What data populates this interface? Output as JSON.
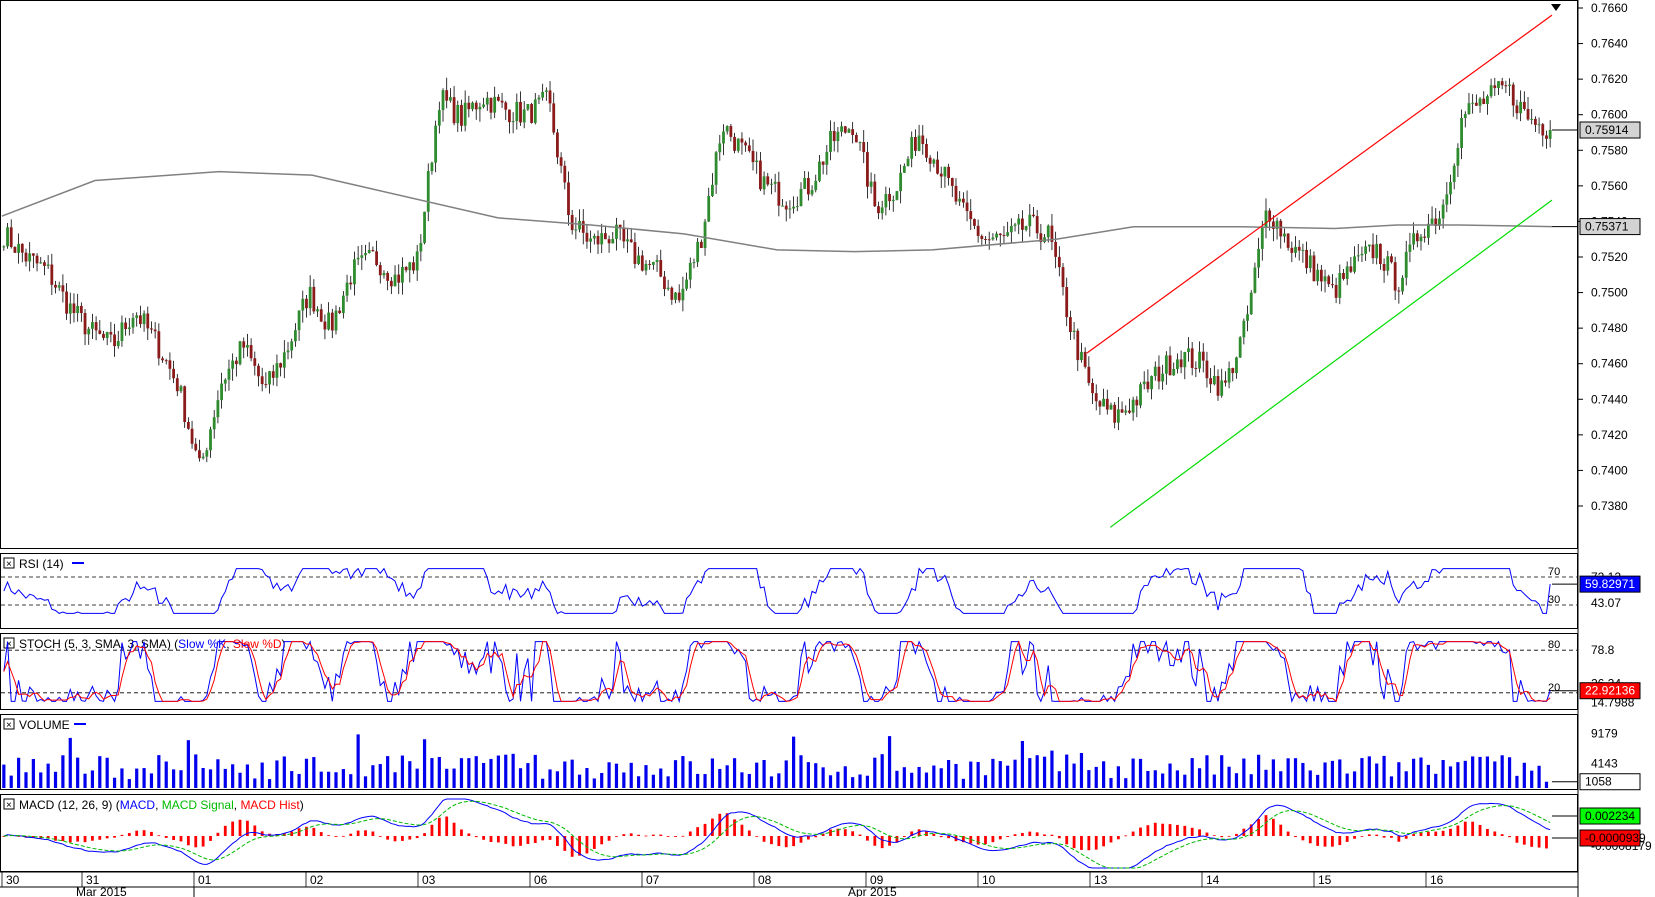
{
  "chart_data": {
    "type": "candlestick",
    "price": {
      "ylim": [
        0.7362,
        0.766
      ],
      "ticks": [
        "0.7380",
        "0.7400",
        "0.7420",
        "0.7440",
        "0.7460",
        "0.7480",
        "0.7500",
        "0.7520",
        "0.7540",
        "0.7560",
        "0.7580",
        "0.7600",
        "0.7620",
        "0.7640",
        "0.7660"
      ],
      "last_price_label": "0.75914",
      "last_price": 0.75914,
      "ma_label": "0.75371",
      "ma_value": 0.75371,
      "anchors": [
        0.7533,
        0.752,
        0.7512,
        0.7492,
        0.7478,
        0.747,
        0.749,
        0.7472,
        0.7448,
        0.74,
        0.745,
        0.747,
        0.7445,
        0.7468,
        0.75,
        0.748,
        0.7512,
        0.752,
        0.7508,
        0.7518,
        0.761,
        0.7598,
        0.761,
        0.7603,
        0.76,
        0.7608,
        0.754,
        0.7528,
        0.7533,
        0.752,
        0.7512,
        0.7495,
        0.753,
        0.7595,
        0.7578,
        0.756,
        0.7552,
        0.756,
        0.7585,
        0.7595,
        0.7548,
        0.756,
        0.759,
        0.757,
        0.7545,
        0.753,
        0.753,
        0.7538,
        0.7532,
        0.748,
        0.744,
        0.743,
        0.744,
        0.7455,
        0.7465,
        0.746,
        0.7445,
        0.748,
        0.7548,
        0.7528,
        0.7515,
        0.75,
        0.7515,
        0.7525,
        0.7505,
        0.7535,
        0.7545,
        0.76,
        0.7608,
        0.7615,
        0.7598,
        0.75914
      ],
      "max_anchor_label_date": "",
      "ma200": [
        [
          0,
          0.7543
        ],
        [
          0.06,
          0.7563
        ],
        [
          0.14,
          0.7568
        ],
        [
          0.2,
          0.7566
        ],
        [
          0.24,
          0.7558
        ],
        [
          0.32,
          0.7542
        ],
        [
          0.38,
          0.7538
        ],
        [
          0.44,
          0.7533
        ],
        [
          0.5,
          0.7524
        ],
        [
          0.55,
          0.7523
        ],
        [
          0.6,
          0.7524
        ],
        [
          0.68,
          0.753
        ],
        [
          0.73,
          0.7537
        ],
        [
          0.8,
          0.7537
        ],
        [
          0.86,
          0.7536
        ],
        [
          0.9,
          0.7538
        ],
        [
          0.94,
          0.7538
        ],
        [
          1,
          0.75371
        ]
      ],
      "red_channel": {
        "from": [
          0.7466,
          0.7
        ],
        "to": [
          0.7656,
          1.0
        ]
      },
      "green_channel": {
        "from": [
          0.7368,
          0.715
        ],
        "to": [
          0.7552,
          1.0
        ]
      }
    },
    "rsi": {
      "label": "RSI (14)",
      "ylim": [
        0,
        100
      ],
      "levels": [
        70,
        30
      ],
      "level_labels": [
        "70",
        "30"
      ],
      "right_labels": [
        "72.12",
        "43.07"
      ],
      "current_label": "59.82971",
      "current": 59.82971
    },
    "stoch": {
      "label_prefix": "STOCH (5, 3, SMA, 3, SMA)",
      "k_label": "Slow %K",
      "d_label": "Slow %D",
      "levels": [
        80,
        20
      ],
      "level_labels": [
        "80",
        "20"
      ],
      "right_labels": [
        "78.8",
        "26.24",
        "14.7988"
      ],
      "current_label": "22.92136",
      "current": 22.92136
    },
    "volume": {
      "label": "VOLUME",
      "ylim": [
        0,
        12000
      ],
      "ticks": [
        "9179",
        "4143"
      ],
      "tick_values": [
        9179,
        4143
      ],
      "current_label": "1058",
      "current": 1058
    },
    "macd": {
      "label_prefix": "MACD (12, 26, 9)",
      "macd_label": "MACD",
      "signal_label": "MACD Signal",
      "hist_label": "MACD Hist",
      "right_labels": [
        "-0.0008179"
      ],
      "macd_current_label": "0.002234",
      "macd_current": 0.002234,
      "hist_current_label": "-0.0000939",
      "hist_current": -9.39e-05
    },
    "x_axis": {
      "day_labels": [
        "30",
        "31",
        "01",
        "02",
        "03",
        "06",
        "07",
        "08",
        "09",
        "10",
        "13",
        "14",
        "15",
        "16"
      ],
      "month_labels": [
        "Mar 2015",
        "Apr 2015"
      ]
    }
  },
  "colors": {
    "up_candle": "#2e8b2e",
    "down_candle": "#8b1a1a",
    "ma200": "#808080",
    "red_channel": "#ff0000",
    "green_channel": "#00dd00",
    "rsi_line": "#0000ff",
    "stoch_k": "#0000ff",
    "stoch_d": "#ff0000",
    "volume_bar": "#0000ee",
    "macd_line": "#0000ff",
    "signal_line": "#00bb00",
    "hist": "#ff0000",
    "label_green_bg": "#00ff00",
    "label_red_bg": "#ff0000",
    "label_grey_bg": "#d3d3d3"
  }
}
